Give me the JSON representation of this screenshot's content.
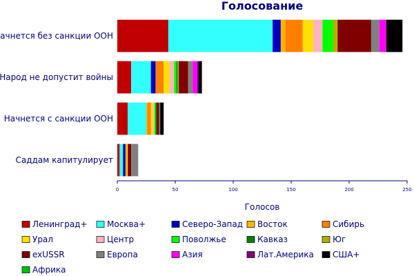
{
  "chart_data": {
    "type": "bar",
    "orientation": "horizontal",
    "stacked": true,
    "title": "Голосование",
    "xlabel": "Голосов",
    "ylabel": "",
    "xlim": [
      0,
      250
    ],
    "xticks": [
      "0",
      "50",
      "100",
      "150",
      "200",
      "250"
    ],
    "grid": false,
    "legend_position": "bottom",
    "categories": [
      "Начнется без санкции ООН",
      "Народ не допустит войны",
      "Начнется с санкции ООН",
      "Саддам капитулирует"
    ],
    "series": [
      {
        "name": "Ленинград+",
        "color": "#c00000",
        "values": [
          44,
          12,
          9,
          2
        ]
      },
      {
        "name": "Москва+",
        "color": "#33ffff",
        "values": [
          90,
          17,
          16,
          3
        ]
      },
      {
        "name": "Северо-Запад",
        "color": "#0000c0",
        "values": [
          7,
          4,
          0,
          2
        ]
      },
      {
        "name": "Восток",
        "color": "#ffb300",
        "values": [
          4,
          0,
          1,
          0
        ]
      },
      {
        "name": "Сибирь",
        "color": "#ff8000",
        "values": [
          15,
          7,
          3,
          1
        ]
      },
      {
        "name": "Урал",
        "color": "#ffe000",
        "values": [
          9,
          5,
          2,
          1
        ]
      },
      {
        "name": "Центр",
        "color": "#ffb3c0",
        "values": [
          8,
          4,
          1,
          0
        ]
      },
      {
        "name": "Поволжье",
        "color": "#00ff00",
        "values": [
          9,
          2,
          1,
          0
        ]
      },
      {
        "name": "Кавказ",
        "color": "#008000",
        "values": [
          0,
          1,
          1,
          0
        ]
      },
      {
        "name": "Юг",
        "color": "#b0b000",
        "values": [
          4,
          1,
          0,
          0
        ]
      },
      {
        "name": "exUSSR",
        "color": "#800000",
        "values": [
          29,
          8,
          2,
          3
        ]
      },
      {
        "name": "Европа",
        "color": "#808080",
        "values": [
          7,
          4,
          1,
          6
        ]
      },
      {
        "name": "Азия",
        "color": "#ff00ff",
        "values": [
          6,
          4,
          0,
          0
        ]
      },
      {
        "name": "Лат.Америка",
        "color": "#800080",
        "values": [
          0,
          1,
          0,
          0
        ]
      },
      {
        "name": "США+",
        "color": "#000000",
        "values": [
          14,
          3,
          3,
          0
        ]
      },
      {
        "name": "Африка",
        "color": "#00c000",
        "values": [
          0,
          0,
          0,
          0
        ]
      }
    ]
  }
}
